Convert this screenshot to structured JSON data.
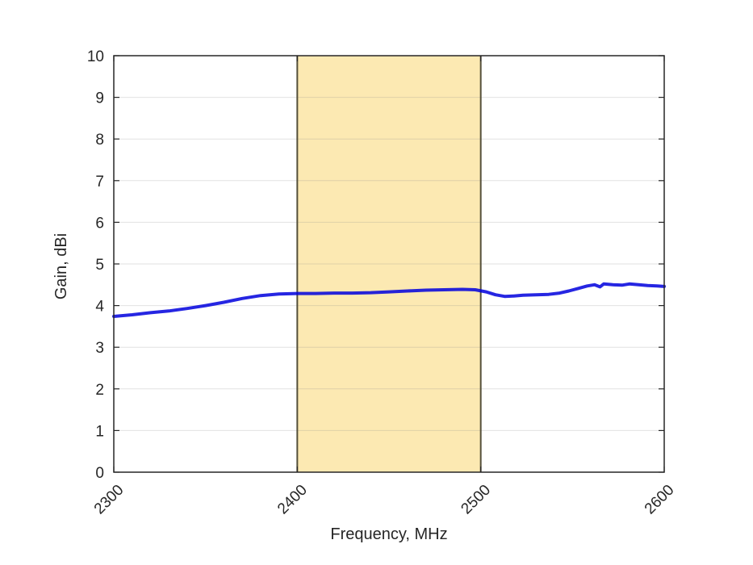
{
  "figure": {
    "background": "#ffffff",
    "frame_color": "#262626",
    "grid_color": "#8c8c8c",
    "text_color": "#262626"
  },
  "chart_data": {
    "type": "line",
    "title": "",
    "xlabel": "Frequency, MHz",
    "ylabel": "Gain, dBi",
    "xlim": [
      2300,
      2600
    ],
    "ylim": [
      0,
      10
    ],
    "xticks": [
      2300,
      2400,
      2500,
      2600
    ],
    "yticks": [
      0,
      1,
      2,
      3,
      4,
      5,
      6,
      7,
      8,
      9,
      10
    ],
    "grid": "horizontal",
    "legend": "none",
    "band": {
      "label": "highlighted-band-2400-2500",
      "x_start": 2400,
      "x_end": 2500,
      "fill": "#FCE9B2",
      "edge": "#55503A"
    },
    "series": [
      {
        "name": "gain",
        "color": "#0000DD",
        "opacity": 0.85,
        "width": 4,
        "x": [
          2300,
          2310,
          2320,
          2330,
          2340,
          2350,
          2360,
          2370,
          2380,
          2390,
          2400,
          2410,
          2420,
          2430,
          2440,
          2450,
          2460,
          2470,
          2480,
          2490,
          2497,
          2503,
          2508,
          2513,
          2518,
          2523,
          2530,
          2537,
          2543,
          2548,
          2553,
          2558,
          2562,
          2565,
          2567,
          2572,
          2577,
          2581,
          2586,
          2591,
          2596,
          2600
        ],
        "y": [
          3.74,
          3.78,
          3.83,
          3.87,
          3.93,
          4.0,
          4.08,
          4.17,
          4.24,
          4.28,
          4.29,
          4.29,
          4.3,
          4.3,
          4.31,
          4.33,
          4.35,
          4.37,
          4.38,
          4.39,
          4.38,
          4.33,
          4.26,
          4.22,
          4.23,
          4.25,
          4.26,
          4.27,
          4.3,
          4.35,
          4.41,
          4.47,
          4.5,
          4.45,
          4.52,
          4.5,
          4.49,
          4.52,
          4.5,
          4.48,
          4.47,
          4.46
        ]
      }
    ]
  }
}
